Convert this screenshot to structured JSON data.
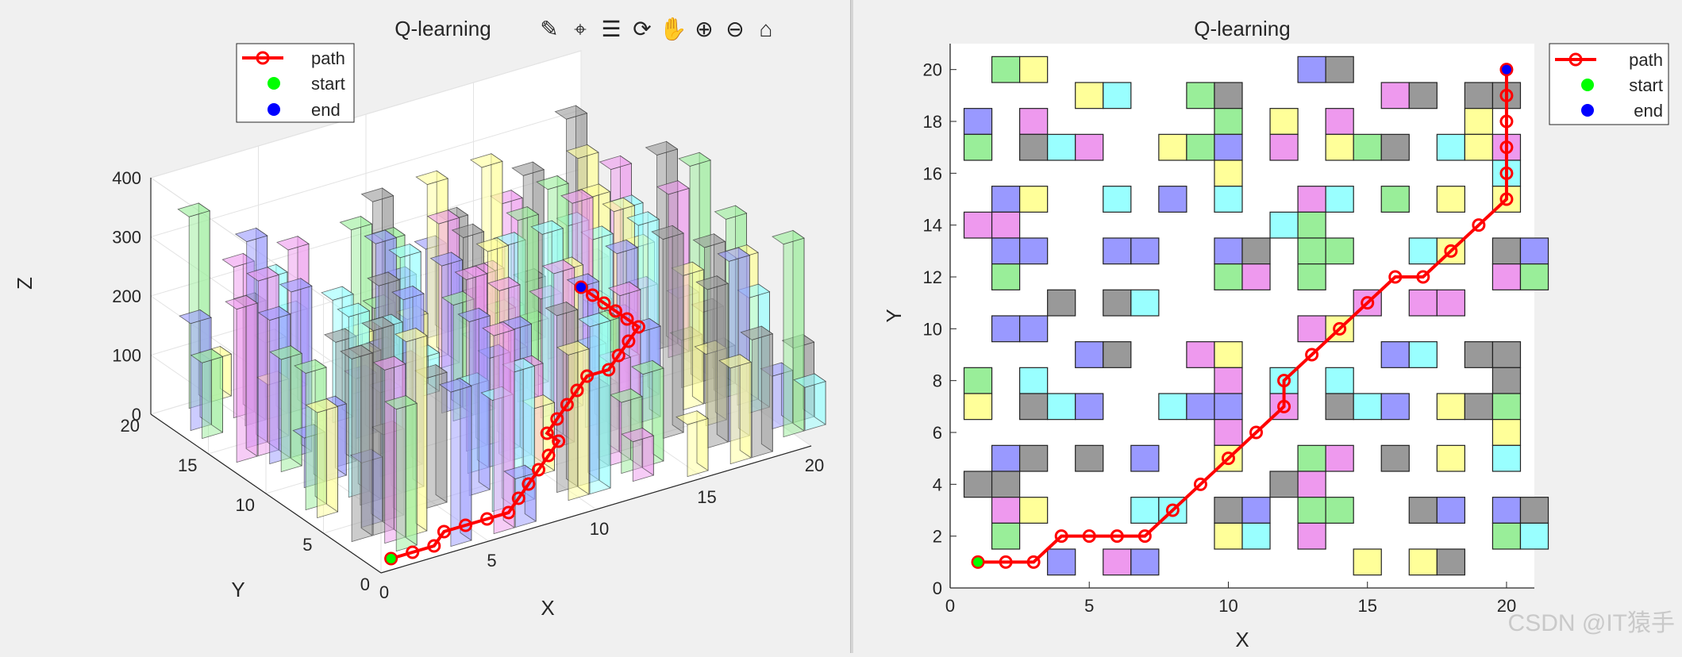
{
  "left_figure": {
    "title": "Q-learning",
    "xlabel": "X",
    "ylabel": "Y",
    "zlabel": "Z",
    "legend": [
      "path",
      "start",
      "end"
    ],
    "toolbar": [
      "brush-icon",
      "data-cursor-icon",
      "legend-toggle-icon",
      "rotate-3d-icon",
      "pan-icon",
      "zoom-in-icon",
      "zoom-out-icon",
      "home-icon"
    ]
  },
  "right_figure": {
    "title": "Q-learning",
    "xlabel": "X",
    "ylabel": "Y",
    "legend": [
      "path",
      "start",
      "end"
    ]
  },
  "watermark": "CSDN @IT猿手",
  "chart_data": [
    {
      "type": "scatter",
      "subtype": "3d-bar-obstacles-with-path",
      "title": "Q-learning",
      "xlabel": "X",
      "ylabel": "Y",
      "zlabel": "Z",
      "xlim": [
        0,
        20
      ],
      "ylim": [
        0,
        20
      ],
      "zlim": [
        0,
        400
      ],
      "xticks": [
        0,
        5,
        10,
        15,
        20
      ],
      "yticks": [
        0,
        5,
        10,
        15,
        20
      ],
      "zticks": [
        0,
        100,
        200,
        300,
        400
      ],
      "grid": true,
      "legend_position": "top-left",
      "series": [
        {
          "name": "path",
          "color": "#ff0000",
          "marker": "o",
          "points": [
            [
              1,
              1
            ],
            [
              2,
              1
            ],
            [
              3,
              1
            ],
            [
              4,
              2
            ],
            [
              5,
              2
            ],
            [
              6,
              2
            ],
            [
              7,
              2
            ],
            [
              8,
              3
            ],
            [
              9,
              4
            ],
            [
              10,
              5
            ],
            [
              11,
              6
            ],
            [
              12,
              7
            ],
            [
              12,
              8
            ],
            [
              13,
              9
            ],
            [
              14,
              10
            ],
            [
              15,
              11
            ],
            [
              16,
              12
            ],
            [
              17,
              12
            ],
            [
              18,
              13
            ],
            [
              19,
              14
            ],
            [
              20,
              15
            ],
            [
              20,
              16
            ],
            [
              20,
              17
            ],
            [
              20,
              18
            ],
            [
              20,
              19
            ],
            [
              20,
              20
            ]
          ]
        },
        {
          "name": "start",
          "color": "#00ff00",
          "points": [
            [
              1,
              1
            ]
          ]
        },
        {
          "name": "end",
          "color": "#0000ff",
          "points": [
            [
              20,
              20
            ]
          ]
        }
      ]
    },
    {
      "type": "scatter",
      "subtype": "grid-obstacles-with-path",
      "title": "Q-learning",
      "xlabel": "X",
      "ylabel": "Y",
      "xlim": [
        0,
        21
      ],
      "ylim": [
        0,
        21
      ],
      "xticks": [
        0,
        5,
        10,
        15,
        20
      ],
      "yticks": [
        0,
        2,
        4,
        6,
        8,
        10,
        12,
        14,
        16,
        18,
        20
      ],
      "grid": false,
      "legend_position": "outside-top-right",
      "palette": {
        "g": "#99ee99",
        "y": "#ffff99",
        "b": "#9999ff",
        "c": "#99ffff",
        "m": "#ee99ee",
        "k": "#999999"
      },
      "obstacles": [
        [
          2,
          20,
          "g"
        ],
        [
          3,
          20,
          "y"
        ],
        [
          13,
          20,
          "b"
        ],
        [
          14,
          20,
          "k"
        ],
        [
          5,
          19,
          "y"
        ],
        [
          6,
          19,
          "c"
        ],
        [
          9,
          19,
          "g"
        ],
        [
          10,
          19,
          "k"
        ],
        [
          16,
          19,
          "m"
        ],
        [
          17,
          19,
          "k"
        ],
        [
          19,
          19,
          "k"
        ],
        [
          20,
          19,
          "k"
        ],
        [
          1,
          18,
          "b"
        ],
        [
          3,
          18,
          "m"
        ],
        [
          10,
          18,
          "g"
        ],
        [
          12,
          18,
          "y"
        ],
        [
          14,
          18,
          "m"
        ],
        [
          19,
          18,
          "y"
        ],
        [
          1,
          17,
          "g"
        ],
        [
          3,
          17,
          "k"
        ],
        [
          4,
          17,
          "c"
        ],
        [
          5,
          17,
          "m"
        ],
        [
          8,
          17,
          "y"
        ],
        [
          9,
          17,
          "g"
        ],
        [
          10,
          17,
          "b"
        ],
        [
          12,
          17,
          "m"
        ],
        [
          14,
          17,
          "y"
        ],
        [
          15,
          17,
          "g"
        ],
        [
          16,
          17,
          "k"
        ],
        [
          18,
          17,
          "c"
        ],
        [
          19,
          17,
          "y"
        ],
        [
          20,
          17,
          "m"
        ],
        [
          10,
          16,
          "y"
        ],
        [
          20,
          16,
          "c"
        ],
        [
          2,
          15,
          "b"
        ],
        [
          3,
          15,
          "y"
        ],
        [
          6,
          15,
          "c"
        ],
        [
          8,
          15,
          "b"
        ],
        [
          10,
          15,
          "c"
        ],
        [
          13,
          15,
          "m"
        ],
        [
          14,
          15,
          "c"
        ],
        [
          16,
          15,
          "g"
        ],
        [
          18,
          15,
          "y"
        ],
        [
          20,
          15,
          "y"
        ],
        [
          1,
          14,
          "m"
        ],
        [
          2,
          14,
          "m"
        ],
        [
          12,
          14,
          "c"
        ],
        [
          13,
          14,
          "g"
        ],
        [
          2,
          13,
          "b"
        ],
        [
          3,
          13,
          "b"
        ],
        [
          6,
          13,
          "b"
        ],
        [
          7,
          13,
          "b"
        ],
        [
          10,
          13,
          "b"
        ],
        [
          11,
          13,
          "k"
        ],
        [
          13,
          13,
          "g"
        ],
        [
          14,
          13,
          "g"
        ],
        [
          17,
          13,
          "c"
        ],
        [
          18,
          13,
          "y"
        ],
        [
          20,
          13,
          "k"
        ],
        [
          21,
          13,
          "b"
        ],
        [
          2,
          12,
          "g"
        ],
        [
          10,
          12,
          "g"
        ],
        [
          11,
          12,
          "m"
        ],
        [
          13,
          12,
          "g"
        ],
        [
          20,
          12,
          "m"
        ],
        [
          21,
          12,
          "g"
        ],
        [
          4,
          11,
          "k"
        ],
        [
          6,
          11,
          "k"
        ],
        [
          7,
          11,
          "c"
        ],
        [
          15,
          11,
          "m"
        ],
        [
          17,
          11,
          "m"
        ],
        [
          18,
          11,
          "m"
        ],
        [
          2,
          10,
          "b"
        ],
        [
          3,
          10,
          "b"
        ],
        [
          13,
          10,
          "m"
        ],
        [
          14,
          10,
          "y"
        ],
        [
          5,
          9,
          "b"
        ],
        [
          6,
          9,
          "k"
        ],
        [
          9,
          9,
          "m"
        ],
        [
          10,
          9,
          "y"
        ],
        [
          16,
          9,
          "b"
        ],
        [
          17,
          9,
          "c"
        ],
        [
          19,
          9,
          "k"
        ],
        [
          20,
          9,
          "k"
        ],
        [
          1,
          8,
          "g"
        ],
        [
          3,
          8,
          "c"
        ],
        [
          10,
          8,
          "m"
        ],
        [
          12,
          8,
          "c"
        ],
        [
          14,
          8,
          "c"
        ],
        [
          20,
          8,
          "k"
        ],
        [
          1,
          7,
          "y"
        ],
        [
          3,
          7,
          "k"
        ],
        [
          4,
          7,
          "c"
        ],
        [
          5,
          7,
          "b"
        ],
        [
          8,
          7,
          "c"
        ],
        [
          9,
          7,
          "b"
        ],
        [
          10,
          7,
          "b"
        ],
        [
          12,
          7,
          "m"
        ],
        [
          14,
          7,
          "k"
        ],
        [
          15,
          7,
          "c"
        ],
        [
          16,
          7,
          "b"
        ],
        [
          18,
          7,
          "y"
        ],
        [
          19,
          7,
          "k"
        ],
        [
          20,
          7,
          "g"
        ],
        [
          10,
          6,
          "m"
        ],
        [
          20,
          6,
          "y"
        ],
        [
          2,
          5,
          "b"
        ],
        [
          3,
          5,
          "k"
        ],
        [
          5,
          5,
          "k"
        ],
        [
          7,
          5,
          "b"
        ],
        [
          10,
          5,
          "y"
        ],
        [
          13,
          5,
          "g"
        ],
        [
          14,
          5,
          "m"
        ],
        [
          16,
          5,
          "k"
        ],
        [
          18,
          5,
          "y"
        ],
        [
          20,
          5,
          "c"
        ],
        [
          1,
          4,
          "k"
        ],
        [
          2,
          4,
          "k"
        ],
        [
          12,
          4,
          "k"
        ],
        [
          13,
          4,
          "m"
        ],
        [
          2,
          3,
          "m"
        ],
        [
          3,
          3,
          "y"
        ],
        [
          7,
          3,
          "c"
        ],
        [
          8,
          3,
          "c"
        ],
        [
          10,
          3,
          "k"
        ],
        [
          11,
          3,
          "b"
        ],
        [
          13,
          3,
          "g"
        ],
        [
          14,
          3,
          "g"
        ],
        [
          17,
          3,
          "k"
        ],
        [
          18,
          3,
          "b"
        ],
        [
          20,
          3,
          "b"
        ],
        [
          21,
          3,
          "k"
        ],
        [
          2,
          2,
          "g"
        ],
        [
          10,
          2,
          "y"
        ],
        [
          11,
          2,
          "c"
        ],
        [
          13,
          2,
          "m"
        ],
        [
          20,
          2,
          "g"
        ],
        [
          21,
          2,
          "c"
        ],
        [
          4,
          1,
          "b"
        ],
        [
          6,
          1,
          "m"
        ],
        [
          7,
          1,
          "b"
        ],
        [
          15,
          1,
          "y"
        ],
        [
          17,
          1,
          "y"
        ],
        [
          18,
          1,
          "k"
        ]
      ],
      "series": [
        {
          "name": "path",
          "color": "#ff0000",
          "marker": "o",
          "x": [
            1,
            2,
            3,
            4,
            5,
            6,
            7,
            8,
            9,
            10,
            11,
            12,
            12,
            13,
            14,
            15,
            16,
            17,
            18,
            19,
            20,
            20,
            20,
            20,
            20,
            20
          ],
          "y": [
            1,
            1,
            1,
            2,
            2,
            2,
            2,
            3,
            4,
            5,
            6,
            7,
            8,
            9,
            10,
            11,
            12,
            12,
            13,
            14,
            15,
            16,
            17,
            18,
            19,
            20
          ]
        },
        {
          "name": "start",
          "color": "#00ff00",
          "x": [
            1
          ],
          "y": [
            1
          ]
        },
        {
          "name": "end",
          "color": "#0000ff",
          "x": [
            20
          ],
          "y": [
            20
          ]
        }
      ]
    }
  ]
}
